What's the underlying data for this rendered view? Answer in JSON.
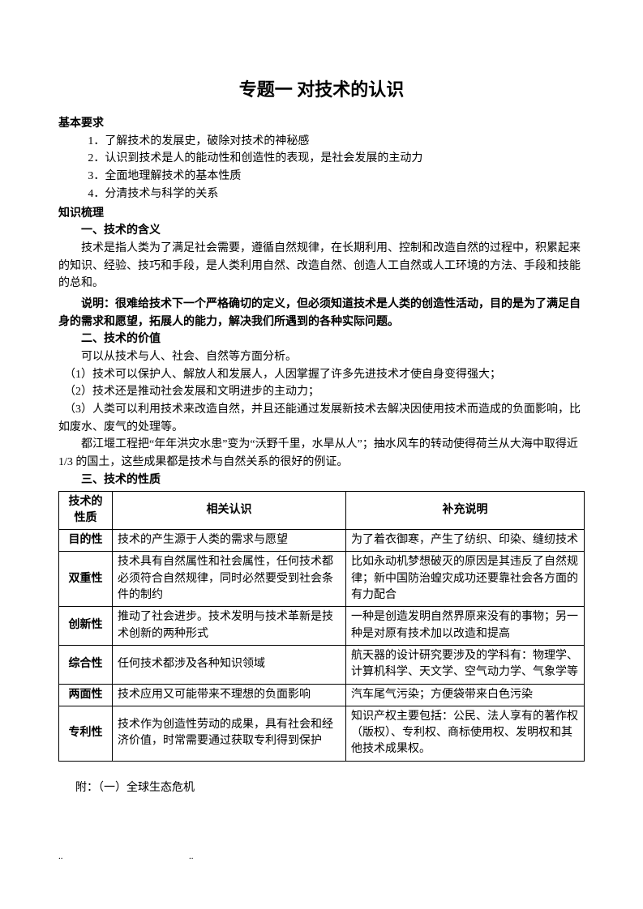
{
  "title": "专题一  对技术的认识",
  "sections": {
    "basic": {
      "heading": "基本要求",
      "items": [
        "1．了解技术的发展史，破除对技术的神秘感",
        "2．认识到技术是人的能动性和创造性的表现，是社会发展的主动力",
        "3．全面地理解技术的基本性质",
        "4．分清技术与科学的关系"
      ]
    },
    "knowledge": {
      "heading": "知识梳理",
      "sec1": {
        "heading": "一、技术的含义",
        "p1": "技术是指人类为了满足社会需要，遵循自然规律，在长期利用、控制和改造自然的过程中，积累起来的知识、经验、技巧和手段，是人类利用自然、改造自然、创造人工自然或人工环境的方法、手段和技能的总和。",
        "note": "说明：很难给技术下一个严格确切的定义，但必须知道技术是人类的创造性活动，目的是为了满足自身的需求和愿望，拓展人的能力，解决我们所遇到的各种实际问题。"
      },
      "sec2": {
        "heading": "二、技术的价值",
        "p1": "可以从技术与人、社会、自然等方面分析。",
        "items": [
          "（1）技术可以保护人、解放人和发展人，人因掌握了许多先进技术才使自身变得强大；",
          "（2）技术还是推动社会发展和文明进步的主动力；",
          "（3）人类可以利用技术来改造自然，并且还能通过发展新技术去解决因使用技术而造成的负面影响，比如废水、废气的处理等。"
        ],
        "p2": "都江堰工程把“年年洪灾水患”变为“沃野千里，水旱从人”；抽水风车的转动使得荷兰从大海中取得近 1/3 的国土，这些成果都是技术与自然关系的很好的例证。"
      },
      "sec3": {
        "heading": "三、技术的性质",
        "table": {
          "headers": [
            "技术的性质",
            "相关认识",
            "补充说明"
          ],
          "rows": [
            [
              "目的性",
              "技术的产生源于人类的需求与愿望",
              "为了着衣御寒，产生了纺织、印染、缝纫技术"
            ],
            [
              "双重性",
              "技术具有自然属性和社会属性，任何技术都必须符合自然规律，同时必然要受到社会条件的制约",
              "比如永动机梦想破灭的原因是其违反了自然规律；新中国防治蝗灾成功还要靠社会各方面的有力配合"
            ],
            [
              "创新性",
              "推动了社会进步。技术发明与技术革新是技术创新的两种形式",
              "一种是创造发明自然界原来没有的事物；另一种是对原有技术加以改造和提高"
            ],
            [
              "综合性",
              "任何技术都涉及各种知识领域",
              "航天器的设计研究要涉及的学科有：物理学、计算机科学、天文学、空气动力学、气象学等"
            ],
            [
              "两面性",
              "技术应用又可能带来不理想的负面影响",
              "汽车尾气污染；方便袋带来白色污染"
            ],
            [
              "专利性",
              "技术作为创造性劳动的成果，具有社会和经济价值，时常需要通过获取专利得到保护",
              "知识产权主要包括：公民、法人享有的著作权（版权）、专利权、商标使用权、发明权和其他技术成果权。"
            ]
          ]
        }
      }
    },
    "appendix": "附：（一）全球生态危机"
  },
  "footer": {
    "dots1": "..",
    "dots2": ".."
  },
  "colors": {
    "text": "#000000",
    "background": "#ffffff",
    "border": "#000000"
  }
}
